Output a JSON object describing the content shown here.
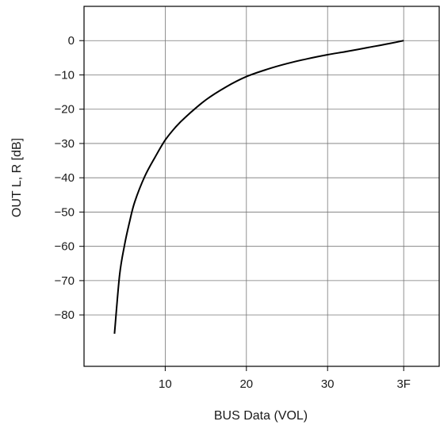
{
  "chart_data": {
    "type": "line",
    "title": "",
    "xlabel": "BUS Data (VOL)",
    "ylabel": "OUT L, R [dB]",
    "xlim": [
      0,
      70
    ],
    "ylim": [
      -95,
      10
    ],
    "x_ticks": [
      {
        "value": 16,
        "label": "10"
      },
      {
        "value": 32,
        "label": "20"
      },
      {
        "value": 48,
        "label": "30"
      },
      {
        "value": 63,
        "label": "3F"
      }
    ],
    "x_grid": [
      16,
      32,
      48,
      63
    ],
    "y_ticks": [
      0,
      -10,
      -20,
      -30,
      -40,
      -50,
      -60,
      -70,
      -80
    ],
    "y_tick_labels": [
      "0",
      "−10",
      "−20",
      "−30",
      "−40",
      "−50",
      "−60",
      "−70",
      "−80"
    ],
    "grid": true,
    "series": [
      {
        "color": "#000000",
        "x": [
          6,
          7,
          8,
          9,
          10,
          12,
          14,
          16,
          18,
          20,
          24,
          28,
          32,
          36,
          40,
          44,
          48,
          52,
          56,
          60,
          63
        ],
        "y": [
          -85.5,
          -68.5,
          -59.5,
          -52.7,
          -47,
          -39.5,
          -34,
          -29,
          -25.3,
          -22.3,
          -17.3,
          -13.5,
          -10.5,
          -8.4,
          -6.7,
          -5.3,
          -4.1,
          -3.1,
          -2,
          -0.9,
          0
        ]
      }
    ]
  }
}
